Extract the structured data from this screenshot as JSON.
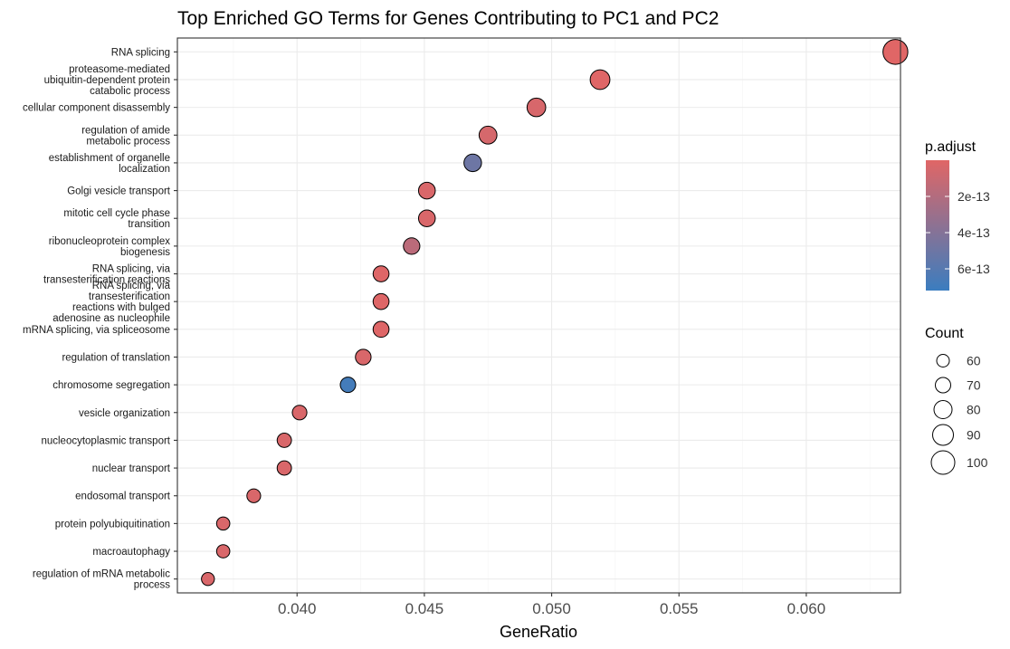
{
  "chart_data": {
    "type": "scatter",
    "title": "Top Enriched GO Terms for Genes Contributing to PC1 and PC2",
    "xlabel": "GeneRatio",
    "ylabel": "",
    "xlim": [
      0.0353,
      0.0637
    ],
    "xticks": [
      0.04,
      0.045,
      0.05,
      0.055,
      0.06
    ],
    "xtick_labels": [
      "0.040",
      "0.045",
      "0.050",
      "0.055",
      "0.060"
    ],
    "grid": true,
    "terms": [
      {
        "label": "RNA splicing",
        "gene_ratio": 0.0635,
        "count": 105,
        "p_adjust": 1e-15
      },
      {
        "label": "proteasome-mediated\nubiquitin-dependent protein\ncatabolic process",
        "gene_ratio": 0.0519,
        "count": 86,
        "p_adjust": 5e-15
      },
      {
        "label": "cellular component disassembly",
        "gene_ratio": 0.0494,
        "count": 82,
        "p_adjust": 4e-14
      },
      {
        "label": "regulation of amide\nmetabolic process",
        "gene_ratio": 0.0475,
        "count": 79,
        "p_adjust": 5e-14
      },
      {
        "label": "establishment of organelle\nlocalization",
        "gene_ratio": 0.0469,
        "count": 78,
        "p_adjust": 5e-13
      },
      {
        "label": "Golgi vesicle transport",
        "gene_ratio": 0.0451,
        "count": 75,
        "p_adjust": 3e-14
      },
      {
        "label": "mitotic cell cycle phase\ntransition",
        "gene_ratio": 0.0451,
        "count": 75,
        "p_adjust": 3e-14
      },
      {
        "label": "ribonucleoprotein complex\nbiogenesis",
        "gene_ratio": 0.0445,
        "count": 74,
        "p_adjust": 1.6e-13
      },
      {
        "label": "RNA splicing, via\ntransesterification reactions",
        "gene_ratio": 0.0433,
        "count": 72,
        "p_adjust": 1e-14
      },
      {
        "label": "RNA splicing, via\ntransesterification\nreactions with bulged\nadenosine as nucleophile",
        "gene_ratio": 0.0433,
        "count": 72,
        "p_adjust": 1e-14
      },
      {
        "label": "mRNA splicing, via spliceosome",
        "gene_ratio": 0.0433,
        "count": 72,
        "p_adjust": 1e-14
      },
      {
        "label": "regulation of translation",
        "gene_ratio": 0.0426,
        "count": 71,
        "p_adjust": 3e-14
      },
      {
        "label": "chromosome segregation",
        "gene_ratio": 0.042,
        "count": 70,
        "p_adjust": 6.8e-13
      },
      {
        "label": "vesicle organization",
        "gene_ratio": 0.0401,
        "count": 67,
        "p_adjust": 3e-14
      },
      {
        "label": "nucleocytoplasmic transport",
        "gene_ratio": 0.0395,
        "count": 66,
        "p_adjust": 3e-14
      },
      {
        "label": "nuclear transport",
        "gene_ratio": 0.0395,
        "count": 66,
        "p_adjust": 3e-14
      },
      {
        "label": "endosomal transport",
        "gene_ratio": 0.0383,
        "count": 64,
        "p_adjust": 3e-14
      },
      {
        "label": "protein polyubiquitination",
        "gene_ratio": 0.0371,
        "count": 62,
        "p_adjust": 3e-14
      },
      {
        "label": "macroautophagy",
        "gene_ratio": 0.0371,
        "count": 62,
        "p_adjust": 3e-14
      },
      {
        "label": "regulation of mRNA metabolic\nprocess",
        "gene_ratio": 0.0365,
        "count": 61,
        "p_adjust": 3e-14
      }
    ],
    "color_legend": {
      "title": "p.adjust",
      "low_color": "#e06666",
      "high_color": "#3b7dbf",
      "range": [
        0,
        7.2e-13
      ],
      "ticks": [
        2e-13,
        4e-13,
        6e-13
      ],
      "tick_labels": [
        "2e-13",
        "4e-13",
        "6e-13"
      ]
    },
    "size_legend": {
      "title": "Count",
      "values": [
        60,
        70,
        80,
        90,
        100
      ],
      "labels": [
        "60",
        "70",
        "80",
        "90",
        "100"
      ]
    }
  }
}
